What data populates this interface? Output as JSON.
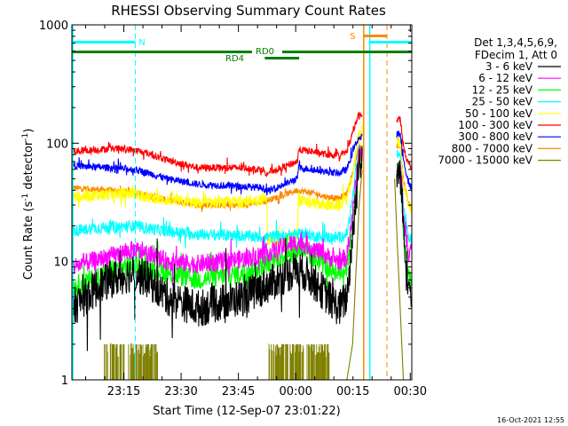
{
  "chart_data": {
    "type": "line",
    "title": "RHESSI Observing Summary Count Rates",
    "xlabel": "Start Time (12-Sep-07 23:01:22)",
    "ylabel_parts": [
      "Count Rate (s",
      "-1",
      " detector",
      "-1",
      ")"
    ],
    "y_scale": "log",
    "ylim": [
      1,
      1000
    ],
    "y_ticks": [
      {
        "v": 1,
        "label": "1"
      },
      {
        "v": 10,
        "label": "10"
      },
      {
        "v": 100,
        "label": "100"
      },
      {
        "v": 1000,
        "label": "1000"
      }
    ],
    "xlim_min": [
      0,
      89
    ],
    "x_ticks": [
      {
        "m": 13.6,
        "label": "23:15"
      },
      {
        "m": 28.6,
        "label": "23:30"
      },
      {
        "m": 43.6,
        "label": "23:45"
      },
      {
        "m": 58.6,
        "label": "00:00"
      },
      {
        "m": 73.6,
        "label": "00:15"
      },
      {
        "m": 88.6,
        "label": "00:30"
      }
    ],
    "footer_date": "16-Oct-2021 12:55",
    "legend_header": [
      "Det 1,3,4,5,6,9,",
      "FDecim 1, Att 0"
    ],
    "gaps_min": [
      [
        76.1,
        85.0
      ]
    ],
    "series": [
      {
        "name": "3 - 6 keV",
        "color": "#000000",
        "points": [
          [
            0,
            4
          ],
          [
            5,
            5.5
          ],
          [
            10,
            7
          ],
          [
            16,
            8
          ],
          [
            20,
            7
          ],
          [
            25,
            5
          ],
          [
            33,
            4
          ],
          [
            45,
            5
          ],
          [
            52,
            6.5
          ],
          [
            57,
            8
          ],
          [
            60,
            8.5
          ],
          [
            63,
            7
          ],
          [
            67,
            5
          ],
          [
            70,
            4
          ],
          [
            72,
            5
          ],
          [
            73.8,
            20
          ],
          [
            75.0,
            70
          ],
          [
            86,
            55
          ],
          [
            86.8,
            20
          ],
          [
            88,
            7
          ],
          [
            89,
            4.5
          ]
        ],
        "noise": 0.16
      },
      {
        "name": "6 - 12 keV",
        "color": "#ff00ff",
        "points": [
          [
            0,
            9
          ],
          [
            5,
            10
          ],
          [
            10,
            11
          ],
          [
            16,
            12.5
          ],
          [
            20,
            11.5
          ],
          [
            25,
            10
          ],
          [
            33,
            9.5
          ],
          [
            45,
            10.5
          ],
          [
            52,
            12
          ],
          [
            57,
            14
          ],
          [
            60,
            14.5
          ],
          [
            63,
            13
          ],
          [
            67,
            11
          ],
          [
            70,
            10
          ],
          [
            72,
            11
          ],
          [
            73.8,
            30
          ],
          [
            75.0,
            80
          ],
          [
            86,
            65
          ],
          [
            86.8,
            25
          ],
          [
            88,
            13
          ],
          [
            89,
            12
          ]
        ],
        "noise": 0.08
      },
      {
        "name": "12 - 25 keV",
        "color": "#00ff00",
        "points": [
          [
            0,
            6
          ],
          [
            5,
            7
          ],
          [
            10,
            8.5
          ],
          [
            16,
            9.5
          ],
          [
            20,
            9
          ],
          [
            25,
            8
          ],
          [
            33,
            7
          ],
          [
            45,
            8
          ],
          [
            52,
            10
          ],
          [
            57,
            12
          ],
          [
            60,
            13
          ],
          [
            63,
            11
          ],
          [
            67,
            9
          ],
          [
            70,
            8
          ],
          [
            72,
            9
          ],
          [
            73.8,
            25
          ],
          [
            75.0,
            75
          ],
          [
            86,
            60
          ],
          [
            86.8,
            18
          ],
          [
            88,
            8
          ],
          [
            89,
            6.5
          ]
        ],
        "noise": 0.09
      },
      {
        "name": "25 - 50 keV",
        "color": "#00ffff",
        "points": [
          [
            0,
            18
          ],
          [
            5,
            19
          ],
          [
            10,
            19.5
          ],
          [
            16,
            20
          ],
          [
            20,
            19
          ],
          [
            25,
            18
          ],
          [
            33,
            17
          ],
          [
            45,
            16.5
          ],
          [
            50,
            16
          ],
          [
            55,
            16.5
          ],
          [
            60,
            17
          ],
          [
            63,
            16.5
          ],
          [
            67,
            16
          ],
          [
            70,
            16
          ],
          [
            72,
            17
          ],
          [
            73.8,
            40
          ],
          [
            75.0,
            85
          ],
          [
            86,
            80
          ],
          [
            86.8,
            30
          ],
          [
            88,
            17
          ],
          [
            89,
            15
          ]
        ],
        "noise": 0.05
      },
      {
        "name": "50 - 100 keV",
        "color": "#ffff00",
        "points": [
          [
            0,
            35
          ],
          [
            5,
            36
          ],
          [
            10,
            37
          ],
          [
            16,
            38
          ],
          [
            20,
            35
          ],
          [
            25,
            33
          ],
          [
            33,
            31
          ],
          [
            45,
            32
          ],
          [
            51,
            34
          ],
          [
            51.3,
            15
          ],
          [
            55,
            15.5
          ],
          [
            59,
            16.5
          ],
          [
            59.3,
            33
          ],
          [
            63,
            31
          ],
          [
            67,
            30
          ],
          [
            70,
            30
          ],
          [
            72,
            34
          ],
          [
            73.8,
            60
          ],
          [
            75.0,
            120
          ],
          [
            86,
            100
          ],
          [
            86.8,
            45
          ],
          [
            88,
            31
          ],
          [
            89,
            28
          ]
        ],
        "noise": 0.05
      },
      {
        "name": "100 - 300 keV",
        "color": "#ff0000",
        "points": [
          [
            0,
            85
          ],
          [
            5,
            87
          ],
          [
            10,
            90
          ],
          [
            16,
            88
          ],
          [
            20,
            82
          ],
          [
            25,
            72
          ],
          [
            33,
            62
          ],
          [
            45,
            62
          ],
          [
            50,
            60
          ],
          [
            51,
            55
          ],
          [
            52,
            58
          ],
          [
            55,
            62
          ],
          [
            59,
            70
          ],
          [
            59.3,
            88
          ],
          [
            63,
            85
          ],
          [
            67,
            80
          ],
          [
            70,
            78
          ],
          [
            72,
            85
          ],
          [
            73.8,
            130
          ],
          [
            75.0,
            170
          ],
          [
            86,
            160
          ],
          [
            86.8,
            95
          ],
          [
            88,
            68
          ],
          [
            89,
            62
          ]
        ],
        "noise": 0.03
      },
      {
        "name": "300 - 800 keV",
        "color": "#0000ff",
        "points": [
          [
            0,
            65
          ],
          [
            5,
            63
          ],
          [
            10,
            62
          ],
          [
            16,
            60
          ],
          [
            20,
            56
          ],
          [
            25,
            50
          ],
          [
            33,
            45
          ],
          [
            45,
            43
          ],
          [
            50,
            42
          ],
          [
            51,
            39
          ],
          [
            52,
            40
          ],
          [
            55,
            44
          ],
          [
            59,
            50
          ],
          [
            59.3,
            62
          ],
          [
            63,
            60
          ],
          [
            67,
            57
          ],
          [
            70,
            56
          ],
          [
            72,
            60
          ],
          [
            73.8,
            90
          ],
          [
            75.0,
            110
          ],
          [
            86,
            120
          ],
          [
            86.8,
            72
          ],
          [
            88,
            48
          ],
          [
            89,
            41
          ]
        ],
        "noise": 0.03
      },
      {
        "name": "800 - 7000 keV",
        "color": "#ff8800",
        "points": [
          [
            0,
            42
          ],
          [
            5,
            41
          ],
          [
            10,
            40
          ],
          [
            16,
            39
          ],
          [
            20,
            36
          ],
          [
            25,
            33
          ],
          [
            33,
            30
          ],
          [
            45,
            30
          ],
          [
            50,
            32
          ],
          [
            55,
            36
          ],
          [
            59,
            40
          ],
          [
            63,
            38
          ],
          [
            67,
            35
          ],
          [
            70,
            34
          ],
          [
            72,
            38
          ],
          [
            73.8,
            60
          ],
          [
            75.0,
            90
          ],
          [
            86,
            95
          ],
          [
            86.8,
            50
          ],
          [
            88,
            32
          ],
          [
            89,
            28
          ]
        ],
        "noise": 0.025
      },
      {
        "name": "7000 - 15000 keV",
        "color": "#808000",
        "points": [
          [
            0,
            1
          ]
        ],
        "noise": 0
      }
    ],
    "olive_bursts_min": [
      [
        8.5,
        22.5
      ],
      [
        51.5,
        67.5
      ]
    ],
    "olive_flare_min": [
      [
        72.0,
        76.0
      ],
      [
        84.5,
        86.8
      ]
    ],
    "annotations": {
      "night_label": "N",
      "saa_label": "S",
      "rd0_label": "RD0",
      "rd4_label": "RD4"
    },
    "state_bars": {
      "night_min": [
        [
          0,
          16.6
        ],
        [
          78.0,
          89
        ]
      ],
      "saa_min": [
        [
          76.4,
          82.5
        ]
      ],
      "rd0_min": [
        [
          0,
          89
        ]
      ],
      "rd4_min": [
        [
          50.5,
          59.5
        ]
      ],
      "night_color": "#00ffff",
      "saa_color": "#ff8800",
      "rd_color": "#008000"
    },
    "vertical_markers": {
      "cyan_dashed_min": [
        16.6,
        89
      ],
      "cyan_solid_min": [
        0,
        78.0
      ],
      "orange_solid_min": [
        76.4
      ],
      "orange_dashed_min": [
        82.5
      ]
    },
    "legend_placement": "right"
  }
}
